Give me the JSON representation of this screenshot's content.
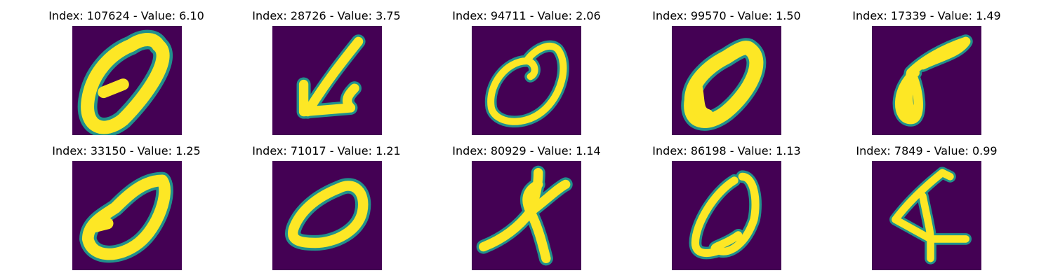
{
  "colors": {
    "background": "#440154",
    "stroke": "#fde725",
    "edge": "#21918c"
  },
  "panels": [
    {
      "title": "Index: 107624 - Value: 6.10"
    },
    {
      "title": "Index: 28726 - Value: 3.75"
    },
    {
      "title": "Index: 94711 - Value: 2.06"
    },
    {
      "title": "Index: 99570 - Value: 1.50"
    },
    {
      "title": "Index: 17339 - Value: 1.49"
    },
    {
      "title": "Index: 33150 - Value: 1.25"
    },
    {
      "title": "Index: 71017 - Value: 1.21"
    },
    {
      "title": "Index: 80929 - Value: 1.14"
    },
    {
      "title": "Index: 86198 - Value: 1.13"
    },
    {
      "title": "Index: 7849 - Value: 0.99"
    }
  ]
}
